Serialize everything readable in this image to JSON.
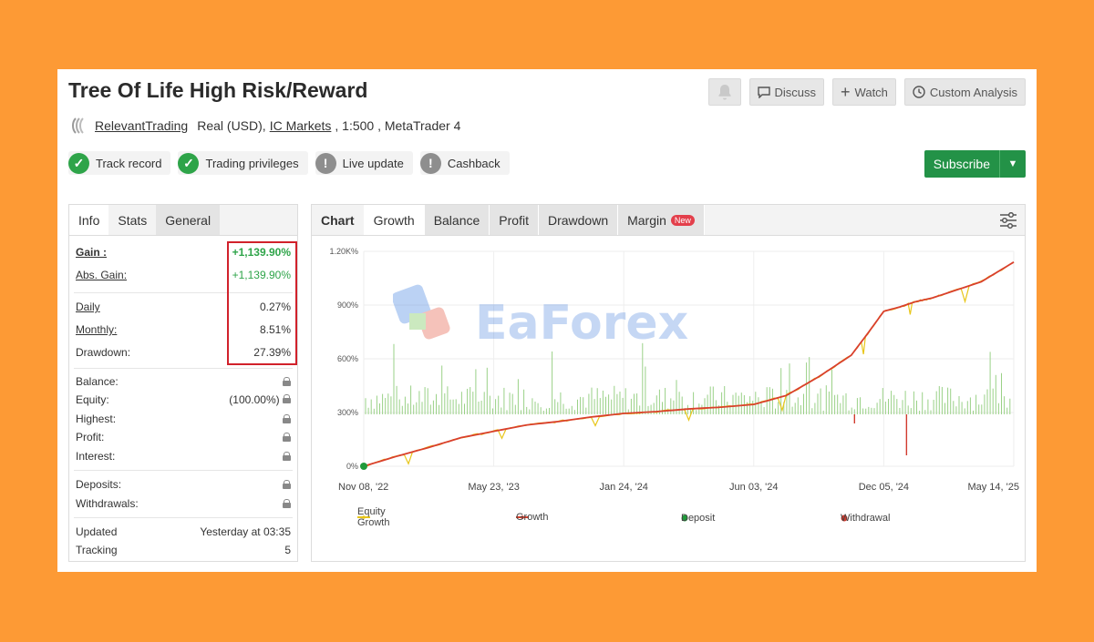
{
  "header": {
    "title": "Tree Of Life High Risk/Reward",
    "buttons": {
      "discuss": "Discuss",
      "watch": "Watch",
      "custom": "Custom Analysis"
    }
  },
  "account": {
    "owner": "RelevantTrading",
    "type": "Real (USD),",
    "broker": "IC Markets",
    "leverage": ", 1:500 , MetaTrader 4"
  },
  "badges": [
    {
      "label": "Track record",
      "status": "ok"
    },
    {
      "label": "Trading privileges",
      "status": "ok"
    },
    {
      "label": "Live update",
      "status": "warn"
    },
    {
      "label": "Cashback",
      "status": "warn"
    }
  ],
  "subscribe_label": "Subscribe",
  "left_tabs": [
    "Info",
    "Stats",
    "General"
  ],
  "stats": {
    "gain": {
      "label": "Gain :",
      "value": "+1,139.90%"
    },
    "abs_gain": {
      "label": "Abs. Gain:",
      "value": "+1,139.90%"
    },
    "daily": {
      "label": "Daily",
      "value": "0.27%"
    },
    "monthly": {
      "label": "Monthly:",
      "value": "8.51%"
    },
    "drawdown": {
      "label": "Drawdown:",
      "value": "27.39%"
    },
    "balance": {
      "label": "Balance:"
    },
    "equity": {
      "label": "Equity:",
      "value": "(100.00%)"
    },
    "highest": {
      "label": "Highest:"
    },
    "profit": {
      "label": "Profit:"
    },
    "interest": {
      "label": "Interest:"
    },
    "deposits": {
      "label": "Deposits:"
    },
    "withdrawals": {
      "label": "Withdrawals:"
    },
    "updated": {
      "label": "Updated",
      "value": "Yesterday at 03:35"
    },
    "tracking": {
      "label": "Tracking",
      "value": "5"
    }
  },
  "right_tabs": [
    "Chart",
    "Growth",
    "Balance",
    "Profit",
    "Drawdown",
    "Margin"
  ],
  "new_badge": "New",
  "watermark": "EaForex",
  "colors": {
    "accent": "#239247",
    "growth": "#d9402c",
    "equity": "#e8c61a",
    "bars": "#9ad187",
    "deposit": "#1f9a3a",
    "withdrawal": "#d13a2e",
    "highlight": "#d1212b"
  },
  "chart_data": {
    "type": "line",
    "ylabels": [
      "0%",
      "300%",
      "600%",
      "900%",
      "1.20K%"
    ],
    "xlabels": [
      "Nov 08, '22",
      "May 23, '23",
      "Jan 24, '24",
      "Jun 03, '24",
      "Dec 05, '24",
      "May 14, '25"
    ],
    "ylim": [
      0,
      1200
    ],
    "legend": [
      "Equity Growth",
      "Growth",
      "Deposit",
      "Withdrawal"
    ],
    "series": [
      {
        "name": "Growth",
        "x": [
          0,
          0.05,
          0.1,
          0.15,
          0.2,
          0.25,
          0.3,
          0.35,
          0.4,
          0.45,
          0.5,
          0.55,
          0.6,
          0.65,
          0.7,
          0.75,
          0.775,
          0.8,
          0.825,
          0.85,
          0.875,
          0.9,
          0.95,
          1.0
        ],
        "values": [
          0,
          55,
          105,
          160,
          195,
          230,
          250,
          275,
          295,
          305,
          320,
          330,
          345,
          395,
          500,
          620,
          740,
          865,
          890,
          920,
          940,
          970,
          1030,
          1139.9
        ]
      }
    ],
    "deposit": {
      "x": 0,
      "value": 0
    }
  }
}
